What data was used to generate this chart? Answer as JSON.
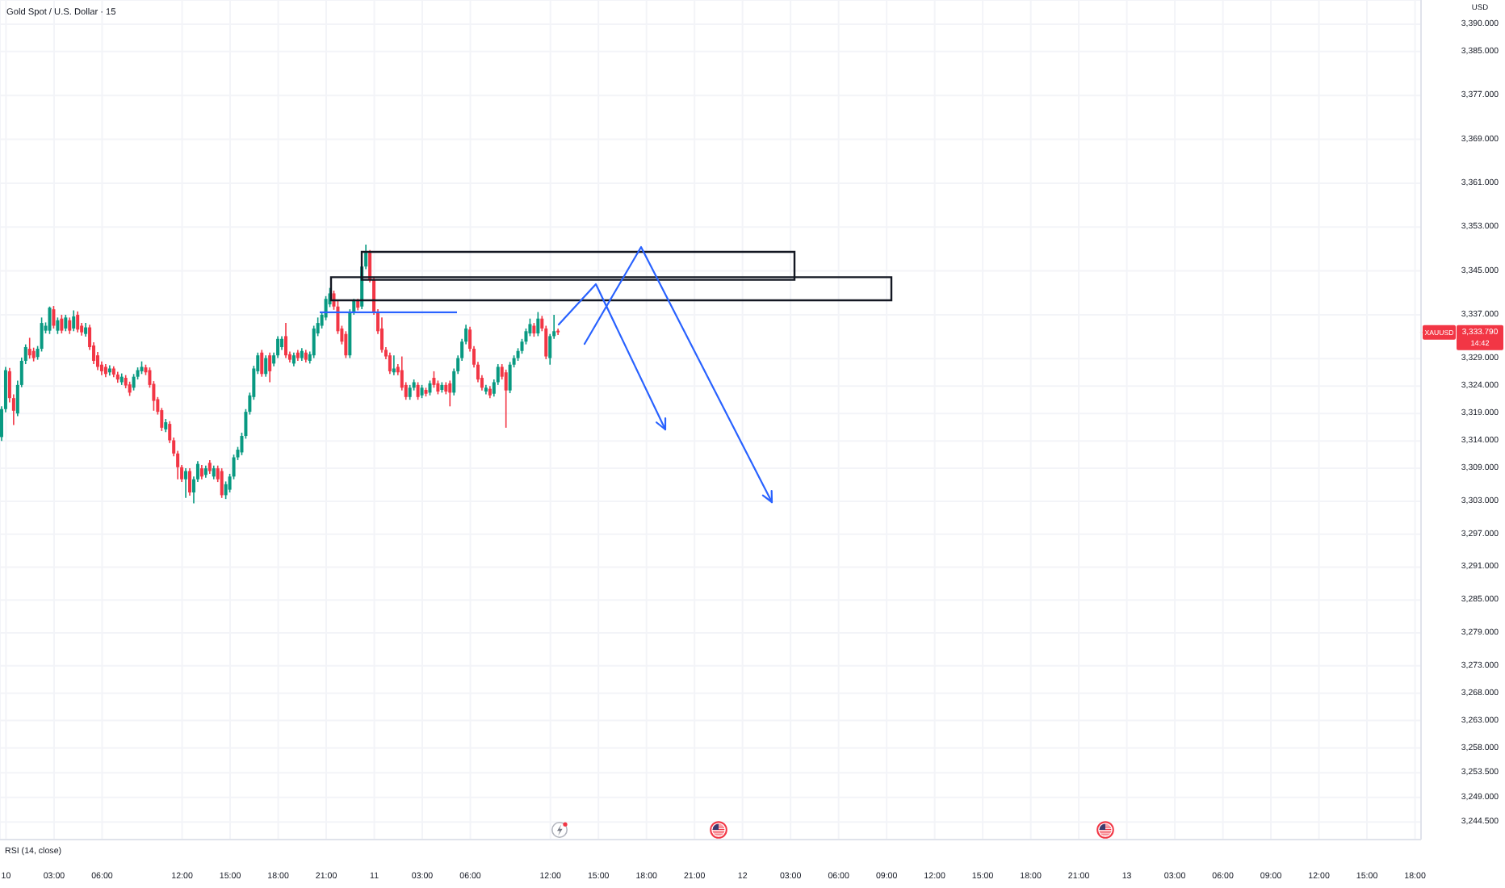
{
  "chart_data": {
    "type": "candlestick",
    "title": "Gold Spot / U.S. Dollar · 15",
    "ylabel": "USD",
    "categories": [
      null,
      "10",
      null,
      null,
      null,
      null,
      null,
      null,
      null,
      null,
      null,
      null,
      null,
      "03:00",
      null,
      null,
      null,
      null,
      null,
      null,
      null,
      null,
      null,
      null,
      null,
      "06:00",
      null,
      null,
      null,
      null,
      null,
      null,
      null,
      null,
      null,
      null,
      null,
      null,
      null,
      null,
      null,
      null,
      null,
      null,
      null,
      "12:00",
      null,
      null,
      null,
      null,
      null,
      null,
      null,
      null,
      null,
      null,
      null,
      "15:00",
      null,
      null,
      null,
      null,
      null,
      null,
      null,
      null,
      null,
      null,
      null,
      "18:00",
      null,
      null,
      null,
      null,
      null,
      null,
      null,
      null,
      null,
      null,
      null,
      "21:00",
      null,
      null,
      null,
      null,
      null,
      null,
      null,
      null,
      null,
      null,
      null,
      "11",
      null,
      null,
      null,
      null,
      null,
      null,
      null,
      null,
      null,
      null,
      null,
      "03:00",
      null,
      null,
      null,
      null,
      null,
      null,
      null,
      null,
      null,
      null,
      null,
      "06:00",
      null,
      null,
      null,
      null,
      null,
      null,
      null,
      null,
      null,
      null,
      null,
      null,
      null,
      null,
      null,
      null,
      null,
      null,
      null,
      "12:00",
      null,
      null,
      null,
      null,
      null,
      null,
      null,
      null,
      null,
      null,
      null,
      "15:00",
      null,
      null,
      null,
      null,
      null,
      null,
      null,
      null,
      null,
      null,
      null,
      "18:00",
      null,
      null,
      null,
      null,
      null,
      null,
      null,
      null,
      null,
      null,
      null,
      "21:00",
      null,
      null,
      null,
      null,
      null,
      null,
      null,
      null,
      null,
      null,
      null,
      "12",
      null,
      null,
      null,
      null,
      null,
      null,
      null,
      null,
      null,
      null,
      null,
      "03:00",
      null,
      null,
      null,
      null,
      null,
      null,
      null,
      null,
      null,
      null,
      null,
      "06:00",
      null,
      null,
      null,
      null,
      null,
      null,
      null,
      null,
      null,
      null,
      null,
      "09:00",
      null,
      null,
      null,
      null,
      null,
      null,
      null,
      null,
      null,
      null,
      null,
      "12:00",
      null,
      null,
      null,
      null,
      null,
      null,
      null,
      null,
      null,
      null,
      null,
      "15:00",
      null,
      null,
      null,
      null,
      null,
      null,
      null,
      null,
      null,
      null,
      null,
      "18:00",
      null,
      null,
      null,
      null,
      null,
      null,
      null,
      null,
      null,
      null,
      null,
      "21:00",
      null,
      null,
      null,
      null,
      null,
      null,
      null,
      null,
      null,
      null,
      null,
      "13",
      null,
      null,
      null,
      null,
      null,
      null,
      null,
      null,
      null,
      null,
      null,
      "03:00",
      null,
      null,
      null,
      null,
      null,
      null,
      null,
      null,
      null,
      null,
      null,
      "06:00",
      null,
      null,
      null,
      null,
      null,
      null,
      null,
      null,
      null,
      null,
      null,
      "09:00",
      null,
      null,
      null,
      null,
      null,
      null,
      null,
      null,
      null,
      null,
      null,
      "12:00",
      null,
      null,
      null,
      null,
      null,
      null,
      null,
      null,
      null,
      null,
      null,
      "15:00",
      null,
      null,
      null,
      null,
      null,
      null,
      null,
      null,
      null,
      null,
      null,
      "18:00",
      null
    ],
    "ohlc": [
      [
        3314.7,
        3320.3,
        3314.0,
        3319.8
      ],
      [
        3319.8,
        3327.5,
        3319.2,
        3326.9
      ],
      [
        3326.7,
        3327.3,
        3321.0,
        3321.8
      ],
      [
        3321.8,
        3322.5,
        3316.9,
        3319.5
      ],
      [
        3319.0,
        3325.0,
        3318.5,
        3324.2
      ],
      [
        3324.2,
        3329.2,
        3323.8,
        3328.6
      ],
      [
        3328.6,
        3331.6,
        3328.0,
        3331.1
      ],
      [
        3330.8,
        3332.8,
        3329.0,
        3329.6
      ],
      [
        3330.4,
        3331.0,
        3328.5,
        3329.1
      ],
      [
        3329.3,
        3331.3,
        3328.8,
        3330.8
      ],
      [
        3330.8,
        3336.5,
        3330.3,
        3335.5
      ],
      [
        3334.1,
        3335.6,
        3333.6,
        3335.0
      ],
      [
        3334.1,
        3338.5,
        3333.5,
        3338.3
      ],
      [
        3338.0,
        3338.6,
        3334.5,
        3335.0
      ],
      [
        3334.1,
        3336.5,
        3333.5,
        3336.0
      ],
      [
        3336.3,
        3337.0,
        3333.6,
        3334.1
      ],
      [
        3334.5,
        3337.0,
        3334.0,
        3336.5
      ],
      [
        3336.0,
        3336.5,
        3333.5,
        3334.1
      ],
      [
        3334.5,
        3337.8,
        3334.0,
        3336.7
      ],
      [
        3337.0,
        3337.6,
        3333.8,
        3334.3
      ],
      [
        3335.0,
        3335.5,
        3333.2,
        3333.8
      ],
      [
        3333.5,
        3335.5,
        3333.0,
        3334.7
      ],
      [
        3334.7,
        3335.2,
        3330.6,
        3331.1
      ],
      [
        3331.4,
        3332.0,
        3328.0,
        3328.6
      ],
      [
        3329.6,
        3330.2,
        3326.9,
        3327.5
      ],
      [
        3327.9,
        3328.5,
        3326.0,
        3326.7
      ],
      [
        3327.5,
        3328.0,
        3325.6,
        3326.2
      ],
      [
        3326.5,
        3327.8,
        3325.9,
        3327.2
      ],
      [
        3327.2,
        3327.6,
        3325.6,
        3326.1
      ],
      [
        3326.1,
        3326.6,
        3324.6,
        3325.2
      ],
      [
        3324.7,
        3326.3,
        3324.2,
        3325.7
      ],
      [
        3325.5,
        3326.0,
        3323.6,
        3324.1
      ],
      [
        3324.3,
        3324.8,
        3322.2,
        3322.8
      ],
      [
        3323.7,
        3326.2,
        3323.2,
        3325.7
      ],
      [
        3325.7,
        3327.4,
        3325.2,
        3326.9
      ],
      [
        3326.7,
        3328.5,
        3326.2,
        3327.5
      ],
      [
        3327.4,
        3327.9,
        3326.0,
        3326.5
      ],
      [
        3326.9,
        3327.4,
        3323.7,
        3324.2
      ],
      [
        3324.4,
        3324.9,
        3319.5,
        3321.3
      ],
      [
        3321.6,
        3322.0,
        3318.8,
        3319.3
      ],
      [
        3319.6,
        3320.0,
        3315.8,
        3316.4
      ],
      [
        3316.1,
        3318.0,
        3315.6,
        3317.4
      ],
      [
        3317.1,
        3317.6,
        3313.6,
        3314.1
      ],
      [
        3314.1,
        3314.6,
        3311.2,
        3311.7
      ],
      [
        3311.7,
        3312.2,
        3307.0,
        3309.2
      ],
      [
        3309.2,
        3309.6,
        3306.5,
        3307.0
      ],
      [
        3307.0,
        3309.0,
        3303.6,
        3308.5
      ],
      [
        3308.5,
        3309.0,
        3304.0,
        3304.6
      ],
      [
        3304.6,
        3307.5,
        3302.6,
        3307.0
      ],
      [
        3307.0,
        3310.3,
        3306.5,
        3309.8
      ],
      [
        3309.0,
        3309.6,
        3307.0,
        3307.5
      ],
      [
        3307.8,
        3309.5,
        3307.3,
        3309.0
      ],
      [
        3310.0,
        3310.5,
        3308.0,
        3308.5
      ],
      [
        3307.5,
        3309.5,
        3307.0,
        3309.0
      ],
      [
        3309.0,
        3309.5,
        3306.5,
        3307.0
      ],
      [
        3308.5,
        3309.0,
        3303.6,
        3304.1
      ],
      [
        3304.1,
        3306.6,
        3303.4,
        3306.1
      ],
      [
        3305.1,
        3308.0,
        3304.6,
        3307.5
      ],
      [
        3307.5,
        3311.5,
        3307.0,
        3311.0
      ],
      [
        3311.0,
        3312.9,
        3310.5,
        3312.4
      ],
      [
        3311.9,
        3315.5,
        3311.4,
        3314.9
      ],
      [
        3314.9,
        3319.8,
        3314.4,
        3319.3
      ],
      [
        3319.3,
        3322.8,
        3318.8,
        3322.3
      ],
      [
        3322.0,
        3327.7,
        3321.5,
        3327.2
      ],
      [
        3326.7,
        3330.1,
        3326.2,
        3329.6
      ],
      [
        3330.1,
        3330.6,
        3325.7,
        3326.2
      ],
      [
        3326.2,
        3329.6,
        3325.7,
        3329.1
      ],
      [
        3329.6,
        3330.1,
        3324.7,
        3326.7
      ],
      [
        3328.1,
        3330.1,
        3327.6,
        3329.6
      ],
      [
        3329.6,
        3333.1,
        3329.1,
        3332.6
      ],
      [
        3331.1,
        3333.1,
        3330.6,
        3332.6
      ],
      [
        3333.1,
        3335.5,
        3329.1,
        3329.6
      ],
      [
        3329.8,
        3330.3,
        3328.3,
        3328.8
      ],
      [
        3328.1,
        3330.1,
        3327.6,
        3329.6
      ],
      [
        3330.1,
        3330.6,
        3328.6,
        3329.1
      ],
      [
        3329.1,
        3330.9,
        3328.6,
        3330.4
      ],
      [
        3330.1,
        3330.6,
        3328.3,
        3328.8
      ],
      [
        3328.6,
        3330.3,
        3328.1,
        3329.8
      ],
      [
        3329.6,
        3335.0,
        3329.1,
        3334.5
      ],
      [
        3333.6,
        3336.5,
        3333.1,
        3335.5
      ],
      [
        3335.0,
        3337.5,
        3334.5,
        3337.0
      ],
      [
        3336.5,
        3340.4,
        3336.0,
        3339.9
      ],
      [
        3338.9,
        3341.9,
        3338.4,
        3340.9
      ],
      [
        3340.9,
        3341.4,
        3337.9,
        3338.5
      ],
      [
        3338.5,
        3339.5,
        3333.5,
        3334.0
      ],
      [
        3334.5,
        3335.0,
        3331.6,
        3332.1
      ],
      [
        3333.5,
        3334.0,
        3329.1,
        3329.6
      ],
      [
        3329.6,
        3338.0,
        3329.1,
        3337.5
      ],
      [
        3337.5,
        3339.9,
        3337.0,
        3339.5
      ],
      [
        3339.5,
        3339.9,
        3337.8,
        3338.3
      ],
      [
        3338.5,
        3346.3,
        3338.0,
        3345.8
      ],
      [
        3345.8,
        3349.8,
        3345.3,
        3348.3
      ],
      [
        3348.3,
        3348.8,
        3342.9,
        3343.4
      ],
      [
        3343.4,
        3343.9,
        3337.0,
        3337.5
      ],
      [
        3337.5,
        3338.0,
        3333.5,
        3334.0
      ],
      [
        3334.5,
        3336.5,
        3330.1,
        3330.6
      ],
      [
        3330.6,
        3331.1,
        3328.9,
        3329.4
      ],
      [
        3329.6,
        3330.1,
        3326.2,
        3326.7
      ],
      [
        3326.5,
        3329.6,
        3326.0,
        3327.2
      ],
      [
        3327.5,
        3328.0,
        3326.0,
        3326.5
      ],
      [
        3326.9,
        3329.4,
        3323.2,
        3323.7
      ],
      [
        3324.2,
        3324.7,
        3321.5,
        3322.0
      ],
      [
        3322.0,
        3324.2,
        3321.5,
        3323.7
      ],
      [
        3323.7,
        3325.2,
        3323.2,
        3324.7
      ],
      [
        3324.2,
        3324.7,
        3321.5,
        3322.0
      ],
      [
        3322.3,
        3324.2,
        3321.8,
        3323.7
      ],
      [
        3323.3,
        3323.7,
        3322.1,
        3322.6
      ],
      [
        3322.8,
        3325.0,
        3322.3,
        3324.5
      ],
      [
        3325.5,
        3326.7,
        3323.7,
        3324.2
      ],
      [
        3324.5,
        3325.0,
        3322.5,
        3323.0
      ],
      [
        3323.3,
        3324.7,
        3322.8,
        3324.2
      ],
      [
        3324.2,
        3324.7,
        3322.5,
        3323.0
      ],
      [
        3324.5,
        3325.0,
        3320.3,
        3322.8
      ],
      [
        3322.8,
        3327.2,
        3322.3,
        3326.7
      ],
      [
        3326.7,
        3329.6,
        3326.2,
        3329.1
      ],
      [
        3329.1,
        3332.6,
        3328.6,
        3332.1
      ],
      [
        3332.1,
        3335.2,
        3331.6,
        3334.5
      ],
      [
        3334.3,
        3334.8,
        3330.3,
        3330.8
      ],
      [
        3330.8,
        3331.3,
        3327.4,
        3327.9
      ],
      [
        3327.9,
        3328.4,
        3324.7,
        3325.2
      ],
      [
        3325.5,
        3326.0,
        3323.2,
        3323.7
      ],
      [
        3323.0,
        3324.2,
        3322.5,
        3323.7
      ],
      [
        3323.5,
        3324.0,
        3321.8,
        3322.3
      ],
      [
        3322.6,
        3325.2,
        3322.1,
        3324.7
      ],
      [
        3324.7,
        3328.0,
        3324.2,
        3327.5
      ],
      [
        3327.5,
        3328.0,
        3325.2,
        3325.7
      ],
      [
        3326.5,
        3327.0,
        3316.4,
        3323.2
      ],
      [
        3323.2,
        3328.4,
        3322.7,
        3327.9
      ],
      [
        3327.9,
        3329.6,
        3327.4,
        3329.1
      ],
      [
        3329.1,
        3330.9,
        3328.6,
        3330.4
      ],
      [
        3330.4,
        3332.6,
        3329.9,
        3332.1
      ],
      [
        3332.1,
        3334.5,
        3331.6,
        3334.0
      ],
      [
        3333.6,
        3336.3,
        3333.1,
        3335.3
      ],
      [
        3335.0,
        3335.5,
        3333.0,
        3333.6
      ],
      [
        3333.6,
        3337.5,
        3333.1,
        3336.3
      ],
      [
        3336.3,
        3336.8,
        3334.0,
        3334.5
      ],
      [
        3334.5,
        3335.0,
        3328.9,
        3329.4
      ],
      [
        3329.1,
        3333.5,
        3327.9,
        3333.1
      ],
      [
        3333.1,
        3337.0,
        3332.6,
        3334.0
      ],
      [
        3334.1,
        3334.5,
        3333.3,
        3333.79
      ],
      null,
      null,
      null,
      null,
      null,
      null,
      null,
      null,
      null,
      null,
      null,
      null,
      null,
      null,
      null,
      null,
      null,
      null,
      null,
      null,
      null,
      null,
      null,
      null,
      null,
      null,
      null,
      null,
      null,
      null,
      null,
      null,
      null,
      null,
      null,
      null,
      null,
      null,
      null,
      null,
      null,
      null,
      null,
      null,
      null,
      null,
      null,
      null,
      null,
      null,
      null,
      null,
      null,
      null,
      null,
      null,
      null,
      null,
      null,
      null,
      null,
      null,
      null,
      null,
      null,
      null,
      null,
      null,
      null,
      null,
      null,
      null,
      null,
      null,
      null,
      null,
      null,
      null,
      null,
      null,
      null,
      null,
      null,
      null,
      null,
      null,
      null,
      null,
      null,
      null,
      null,
      null,
      null,
      null,
      null,
      null,
      null,
      null,
      null,
      null,
      null,
      null,
      null,
      null,
      null,
      null,
      null,
      null,
      null,
      null,
      null,
      null,
      null,
      null,
      null,
      null,
      null,
      null,
      null,
      null,
      null,
      null,
      null,
      null,
      null,
      null,
      null,
      null,
      null,
      null,
      null,
      null,
      null,
      null,
      null,
      null,
      null,
      null,
      null,
      null,
      null,
      null,
      null,
      null,
      null,
      null,
      null,
      null,
      null,
      null,
      null,
      null,
      null,
      null,
      null,
      null,
      null,
      null,
      null,
      null,
      null,
      null,
      null,
      null,
      null,
      null,
      null,
      null,
      null,
      null,
      null,
      null,
      null,
      null,
      null,
      null,
      null,
      null,
      null,
      null,
      null,
      null,
      null,
      null,
      null,
      null,
      null,
      null,
      null,
      null,
      null,
      null,
      null,
      null,
      null,
      null,
      null,
      null,
      null,
      null,
      null,
      null,
      null,
      null,
      null,
      null,
      null,
      null,
      null,
      null,
      null,
      null,
      null,
      null,
      null
    ],
    "colors": [
      "#089981",
      "#089981",
      "#f23645",
      "#f23645",
      "#089981",
      "#089981",
      "#089981",
      "#f23645",
      "#f23645",
      "#089981",
      "#089981",
      "#089981",
      "#089981",
      "#f23645",
      "#089981",
      "#f23645",
      "#089981",
      "#f23645",
      "#089981",
      "#f23645",
      "#f23645",
      "#089981",
      "#f23645",
      "#f23645",
      "#f23645",
      "#f23645",
      "#f23645",
      "#089981",
      "#f23645",
      "#f23645",
      "#089981",
      "#f23645",
      "#f23645",
      "#089981",
      "#089981",
      "#089981",
      "#f23645",
      "#f23645",
      "#f23645",
      "#f23645",
      "#f23645",
      "#089981",
      "#f23645",
      "#f23645",
      "#f23645",
      "#f23645",
      "#089981",
      "#f23645",
      "#089981",
      "#089981",
      "#f23645",
      "#089981",
      "#f23645",
      "#089981",
      "#f23645",
      "#f23645",
      "#089981",
      "#089981",
      "#089981",
      "#089981",
      "#089981",
      "#089981",
      "#089981",
      "#089981",
      "#089981",
      "#f23645",
      "#089981",
      "#f23645",
      "#089981",
      "#089981",
      "#089981",
      "#f23645",
      "#f23645",
      "#089981",
      "#f23645",
      "#089981",
      "#f23645",
      "#089981",
      "#089981",
      "#089981",
      "#089981",
      "#089981",
      "#089981",
      "#f23645",
      "#f23645",
      "#f23645",
      "#f23645",
      "#089981",
      "#089981",
      "#f23645",
      "#089981",
      "#089981",
      "#f23645",
      "#f23645",
      "#f23645",
      "#f23645",
      "#f23645",
      "#f23645",
      "#089981",
      "#f23645",
      "#f23645",
      "#f23645",
      "#089981",
      "#089981",
      "#f23645",
      "#089981",
      "#f23645",
      "#089981",
      "#f23645",
      "#f23645",
      "#089981",
      "#f23645",
      "#f23645",
      "#089981",
      "#089981",
      "#089981",
      "#089981",
      "#f23645",
      "#f23645",
      "#f23645",
      "#f23645",
      "#089981",
      "#f23645",
      "#089981",
      "#089981",
      "#f23645",
      "#f23645",
      "#089981",
      "#089981",
      "#089981",
      "#089981",
      "#089981",
      "#089981",
      "#f23645",
      "#089981",
      "#f23645",
      "#f23645",
      "#089981",
      "#089981",
      "#f23645",
      null,
      null,
      null,
      null,
      null,
      null,
      null,
      null,
      null,
      null,
      null,
      null,
      null,
      null,
      null,
      null,
      null,
      null,
      null,
      null,
      null,
      null,
      null,
      null,
      null,
      null,
      null,
      null,
      null,
      null,
      null,
      null,
      null,
      null,
      null,
      null,
      null,
      null,
      null,
      null,
      null,
      null,
      null,
      null,
      null,
      null,
      null,
      null,
      null,
      null,
      null,
      null,
      null,
      null,
      null,
      null,
      null,
      null,
      null,
      null,
      null,
      null,
      null,
      null,
      null,
      null,
      null,
      null,
      null,
      null,
      null,
      null,
      null,
      null,
      null,
      null,
      null,
      null,
      null,
      null,
      null,
      null,
      null,
      null,
      null,
      null,
      null,
      null,
      null,
      null,
      null,
      null,
      null,
      null,
      null,
      null,
      null,
      null,
      null,
      null,
      null,
      null,
      null,
      null,
      null,
      null,
      null,
      null,
      null,
      null,
      null,
      null,
      null,
      null,
      null,
      null,
      null,
      null,
      null,
      null,
      null,
      null,
      null,
      null,
      null,
      null,
      null,
      null,
      null,
      null,
      null,
      null,
      null,
      null,
      null,
      null,
      null,
      null,
      null,
      null,
      null,
      null,
      null,
      null,
      null,
      null,
      null,
      null,
      null,
      null,
      null,
      null,
      null,
      null,
      null,
      null,
      null,
      null,
      null,
      null,
      null,
      null,
      null,
      null,
      null,
      null,
      null,
      null,
      null,
      null,
      null,
      null,
      null,
      null,
      null,
      null,
      null,
      null,
      null,
      null,
      null,
      null,
      null,
      null,
      null,
      null,
      null,
      null,
      null,
      null,
      null,
      null,
      null,
      null,
      null,
      null,
      null,
      null,
      null,
      null,
      null,
      null,
      null,
      null,
      null,
      null,
      null,
      null,
      null,
      null,
      null,
      null,
      null,
      null,
      null
    ],
    "ylim": [
      3241.3,
      3394.4
    ],
    "yticks": [
      {
        "value": 3390,
        "label": "3,390.000"
      },
      {
        "value": 3385,
        "label": "3,385.000"
      },
      {
        "value": 3377,
        "label": "3,377.000"
      },
      {
        "value": 3369,
        "label": "3,369.000"
      },
      {
        "value": 3361,
        "label": "3,361.000"
      },
      {
        "value": 3353,
        "label": "3,353.000"
      },
      {
        "value": 3345,
        "label": "3,345.000"
      },
      {
        "value": 3337,
        "label": "3,337.000"
      },
      {
        "value": 3329,
        "label": "3,329.000"
      },
      {
        "value": 3324,
        "label": "3,324.000"
      },
      {
        "value": 3319,
        "label": "3,319.000"
      },
      {
        "value": 3314,
        "label": "3,314.000"
      },
      {
        "value": 3309,
        "label": "3,309.000"
      },
      {
        "value": 3303,
        "label": "3,303.000"
      },
      {
        "value": 3297,
        "label": "3,297.000"
      },
      {
        "value": 3291,
        "label": "3,291.000"
      },
      {
        "value": 3285,
        "label": "3,285.000"
      },
      {
        "value": 3279,
        "label": "3,279.000"
      },
      {
        "value": 3273,
        "label": "3,273.000"
      },
      {
        "value": 3268,
        "label": "3,268.000"
      },
      {
        "value": 3263,
        "label": "3,263.000"
      },
      {
        "value": 3258,
        "label": "3,258.000"
      },
      {
        "value": 3253.5,
        "label": "3,253.500"
      },
      {
        "value": 3249,
        "label": "3,249.000"
      },
      {
        "value": 3244.5,
        "label": "3,244.500"
      }
    ],
    "grid": true,
    "ref_lines": [
      {
        "axis": "y",
        "value": 3333.79,
        "label": "3,333.790",
        "color": "#f23645",
        "line_style": "dotted"
      }
    ],
    "annotations": [
      "XAUUSD",
      "14:42",
      "RSI (14, close)"
    ]
  }
}
